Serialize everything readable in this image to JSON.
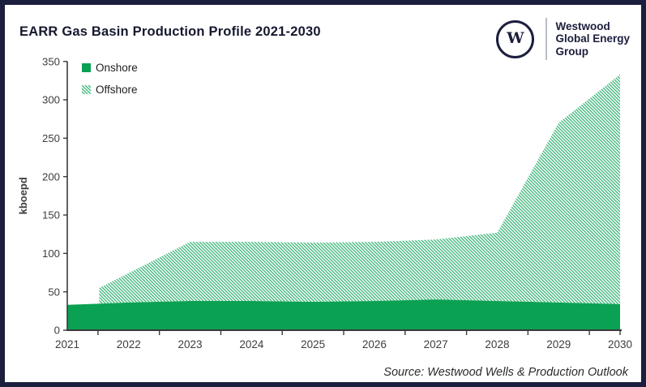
{
  "header": {
    "title": "EARR Gas Basin Production Profile 2021-2030",
    "logo": {
      "monogram": "W",
      "lines": [
        "Westwood",
        "Global Energy",
        "Group"
      ]
    }
  },
  "source_note": "Source: Westwood Wells & Production Outlook",
  "colors": {
    "onshore": "#0ba153",
    "offshore_hatch": "#45b87e",
    "axis": "#3a3a3a",
    "tick_text": "#3d3d3d",
    "legend_text": "#1f1f1f",
    "navy": "#1b1e3c"
  },
  "chart_data": {
    "type": "area",
    "stacked": true,
    "title": "EARR Gas Basin Production Profile 2021-2030",
    "xlabel": "",
    "ylabel": "kboepd",
    "units": "kboepd",
    "ylim": [
      0,
      350
    ],
    "yticks": [
      0,
      50,
      100,
      150,
      200,
      250,
      300,
      350
    ],
    "categories": [
      2021,
      2022,
      2023,
      2024,
      2025,
      2026,
      2027,
      2028,
      2029,
      2030
    ],
    "series": [
      {
        "name": "Onshore",
        "style": "solid-green",
        "values": [
          33,
          36,
          38,
          38,
          37,
          38,
          40,
          38,
          36,
          34
        ]
      },
      {
        "name": "Offshore",
        "style": "diagonal-hatch-green",
        "values": [
          0,
          39,
          77,
          77,
          77,
          77,
          78,
          89,
          234,
          299
        ]
      }
    ],
    "legend": [
      "Onshore",
      "Offshore"
    ],
    "legend_position": "top-left-inside",
    "grid": false,
    "x_ticks_between_years": true,
    "offshore_onset_note": "Offshore production begins between 2021 and 2022 with a vertical step",
    "onshore_top_profile": [
      [
        2021,
        33
      ],
      [
        2022,
        36
      ],
      [
        2023,
        38
      ],
      [
        2024,
        38
      ],
      [
        2025,
        37
      ],
      [
        2026,
        38
      ],
      [
        2027,
        40
      ],
      [
        2028,
        38
      ],
      [
        2029,
        36
      ],
      [
        2030,
        34
      ]
    ],
    "total_top_profile": [
      [
        2021.52,
        55
      ],
      [
        2023,
        115
      ],
      [
        2024,
        115
      ],
      [
        2025,
        114
      ],
      [
        2026,
        115
      ],
      [
        2027,
        118
      ],
      [
        2028,
        127
      ],
      [
        2029,
        270
      ],
      [
        2030,
        333
      ]
    ]
  }
}
